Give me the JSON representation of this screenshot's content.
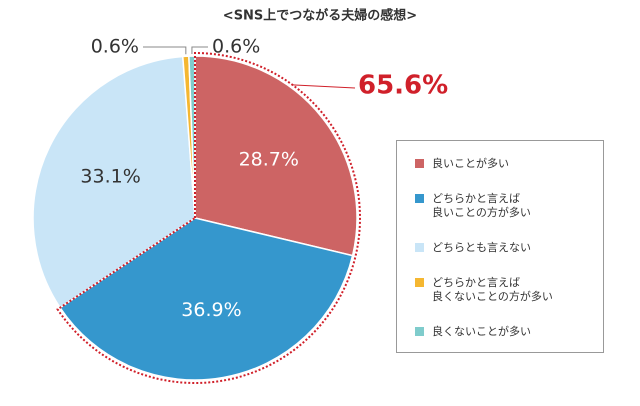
{
  "chart_data": {
    "type": "pie",
    "title": "<SNS上でつながる夫婦の感想>",
    "categories": [
      "良いことが多い",
      "どちらかと言えば\n良いことの方が多い",
      "どちらとも言えない",
      "どちらかと言えば\n良くないことの方が多い",
      "良くないことが多い"
    ],
    "values": [
      28.7,
      36.9,
      33.1,
      0.6,
      0.6
    ],
    "value_labels": [
      "28.7%",
      "36.9%",
      "33.1%",
      "0.6%",
      "0.6%"
    ],
    "colors": [
      "#cd6464",
      "#3597cd",
      "#c9e5f7",
      "#f5b731",
      "#7fcccc"
    ],
    "annotation": "65.6%"
  }
}
